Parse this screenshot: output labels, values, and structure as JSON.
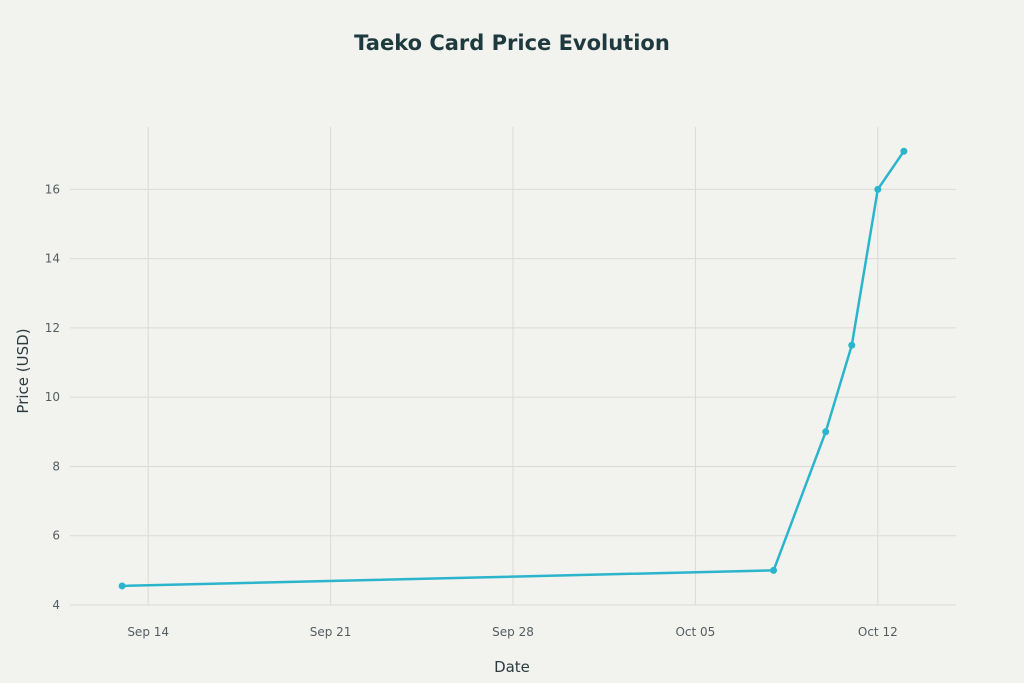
{
  "chart_data": {
    "type": "line",
    "title": "Taeko Card Price Evolution",
    "xlabel": "Date",
    "ylabel": "Price (USD)",
    "x_tick_labels": [
      "Sep 14",
      "Sep 21",
      "Sep 28",
      "Oct 05",
      "Oct 12"
    ],
    "x_tick_dates": [
      "2025-09-14",
      "2025-09-21",
      "2025-09-28",
      "2025-10-05",
      "2025-10-12"
    ],
    "xlim": [
      "2025-09-11",
      "2025-10-15"
    ],
    "y_ticks": [
      4,
      6,
      8,
      10,
      12,
      14,
      16
    ],
    "ylim": [
      4.0,
      17.8
    ],
    "grid": true,
    "legend": false,
    "color": "#2bb5cc",
    "series": [
      {
        "x": [
          "2025-09-13",
          "2025-10-08",
          "2025-10-10",
          "2025-10-11",
          "2025-10-12",
          "2025-10-13"
        ],
        "y": [
          4.55,
          5.0,
          9.0,
          11.5,
          16.0,
          17.1
        ]
      }
    ]
  }
}
